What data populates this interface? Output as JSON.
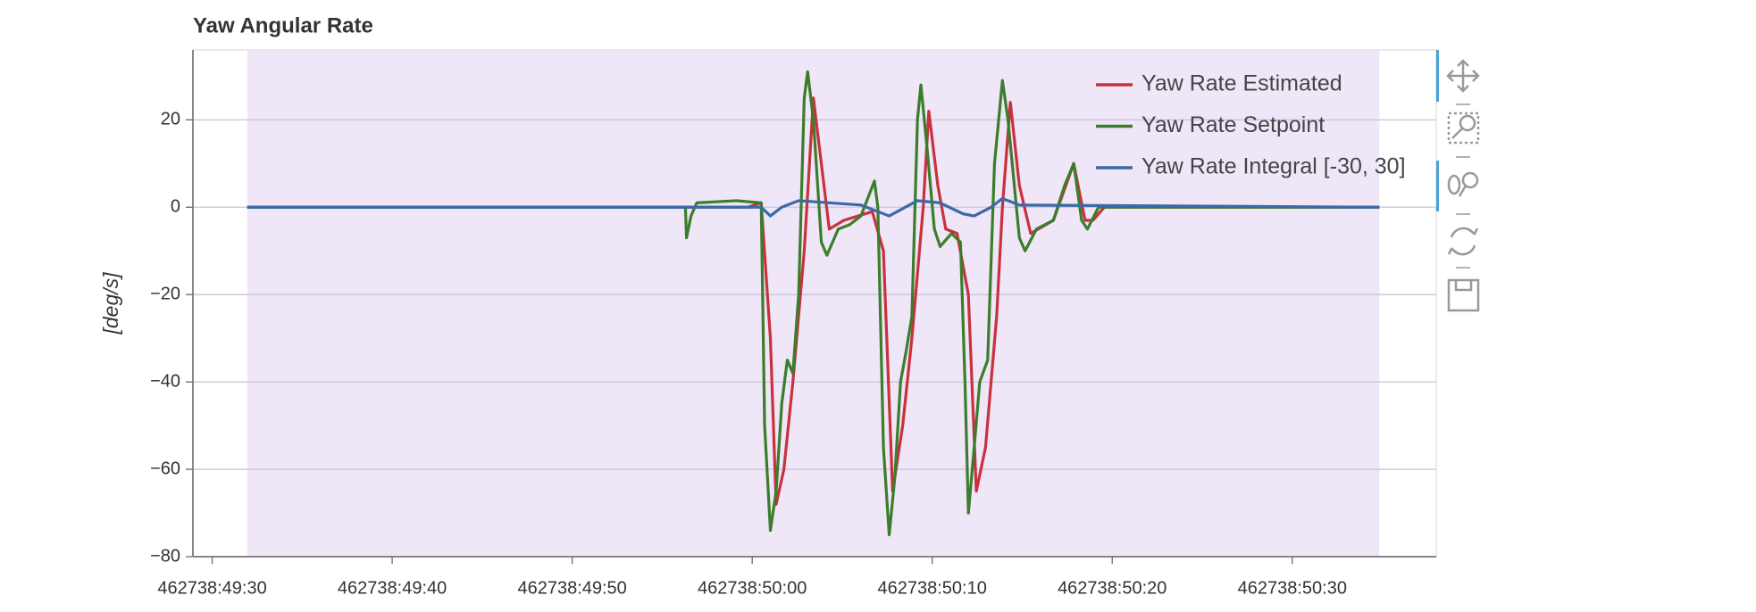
{
  "chart_data": {
    "type": "line",
    "title": "Yaw Angular Rate",
    "y_label": "[deg/s]",
    "xlim": [
      1665859768.93,
      1665859838.0
    ],
    "xticks": [
      {
        "value": 1665859770,
        "label": "462738:49:30"
      },
      {
        "value": 1665859780,
        "label": "462738:49:40"
      },
      {
        "value": 1665859790,
        "label": "462738:49:50"
      },
      {
        "value": 1665859800,
        "label": "462738:50:00"
      },
      {
        "value": 1665859810,
        "label": "462738:50:10"
      },
      {
        "value": 1665859820,
        "label": "462738:50:20"
      },
      {
        "value": 1665859830,
        "label": "462738:50:30"
      }
    ],
    "ylim": [
      -80,
      36
    ],
    "yticks": [
      {
        "value": 20,
        "label": "20"
      },
      {
        "value": 0,
        "label": "0"
      },
      {
        "value": -20,
        "label": "−20"
      },
      {
        "value": -40,
        "label": "−40"
      },
      {
        "value": -60,
        "label": "−60"
      },
      {
        "value": -80,
        "label": "−80"
      }
    ],
    "grid": true,
    "shaded_region": [
      1665859771.95,
      1665859834.84
    ],
    "shade_color": "#efe6f8",
    "legend": "top-right",
    "series": [
      {
        "name": "Yaw Rate Estimated",
        "color": "#c9313d",
        "x": [
          1665859771.95,
          1665859799.75,
          1665859800.5,
          1665859801.01,
          1665859801.33,
          1665859801.76,
          1665859802.26,
          1665859802.89,
          1665859803.4,
          1665859803.84,
          1665859804.28,
          1665859805.09,
          1665859806.67,
          1665859807.29,
          1665859807.8,
          1665859808.36,
          1665859808.87,
          1665859809.5,
          1665859809.81,
          1665859810.31,
          1665859810.75,
          1665859811.38,
          1665859812.01,
          1665859812.45,
          1665859812.96,
          1665859813.58,
          1665859813.9,
          1665859814.34,
          1665859814.84,
          1665859815.47,
          1665859816.73,
          1665859817.86,
          1665859818.49,
          1665859818.93,
          1665859819.56,
          1665859834.84
        ],
        "values": [
          0,
          0,
          1,
          -30,
          -68,
          -60,
          -40,
          -10,
          25,
          10,
          -5,
          -3,
          -1,
          -10,
          -65,
          -50,
          -30,
          0,
          22,
          5,
          -5,
          -6,
          -20,
          -65,
          -55,
          -25,
          0,
          24,
          5,
          -6,
          -3,
          10,
          -3,
          -3,
          0,
          0
        ]
      },
      {
        "name": "Yaw Rate Setpoint",
        "color": "#3b7d2b",
        "x": [
          1665859771.95,
          1665859796.29,
          1665859796.35,
          1665859796.6,
          1665859796.92,
          1665859799.12,
          1665859800.5,
          1665859800.69,
          1665859801.01,
          1665859801.33,
          1665859801.64,
          1665859801.95,
          1665859802.26,
          1665859802.58,
          1665859802.89,
          1665859803.08,
          1665859803.4,
          1665859803.84,
          1665859804.15,
          1665859804.78,
          1665859805.41,
          1665859806.04,
          1665859806.79,
          1665859806.98,
          1665859807.29,
          1665859807.61,
          1665859807.92,
          1665859808.24,
          1665859808.55,
          1665859808.87,
          1665859809.18,
          1665859809.37,
          1665859809.68,
          1665859810.12,
          1665859810.44,
          1665859811.07,
          1665859811.57,
          1665859811.82,
          1665859812.01,
          1665859812.33,
          1665859812.64,
          1665859813.08,
          1665859813.46,
          1665859813.9,
          1665859814.21,
          1665859814.84,
          1665859815.16,
          1665859815.79,
          1665859816.73,
          1665859817.36,
          1665859817.86,
          1665859818.3,
          1665859818.62,
          1665859819.24,
          1665859834.84
        ],
        "values": [
          0,
          0,
          -7,
          -2,
          1,
          1.5,
          1,
          -50,
          -74,
          -65,
          -45,
          -35,
          -38,
          -20,
          25,
          31,
          20,
          -8,
          -11,
          -5,
          -4,
          -2,
          6,
          0,
          -55,
          -75,
          -62,
          -40,
          -33,
          -25,
          20,
          28,
          15,
          -5,
          -9,
          -6,
          -8,
          -40,
          -70,
          -55,
          -40,
          -35,
          10,
          29,
          20,
          -7,
          -10,
          -5,
          -3,
          5,
          10,
          -3,
          -5,
          0,
          0
        ]
      },
      {
        "name": "Yaw Rate Integral [-30, 30]",
        "color": "#3a6aa5",
        "x": [
          1665859771.95,
          1665859800.5,
          1665859801.01,
          1665859801.64,
          1665859802.58,
          1665859806.04,
          1665859807.61,
          1665859809.18,
          1665859810.44,
          1665859811.7,
          1665859812.33,
          1665859813.27,
          1665859813.9,
          1665859814.84,
          1665859834.84
        ],
        "values": [
          0,
          0,
          -2,
          0,
          1.5,
          0.5,
          -2,
          1.5,
          1,
          -1.5,
          -2,
          0,
          2,
          0.5,
          0
        ]
      }
    ]
  }
}
